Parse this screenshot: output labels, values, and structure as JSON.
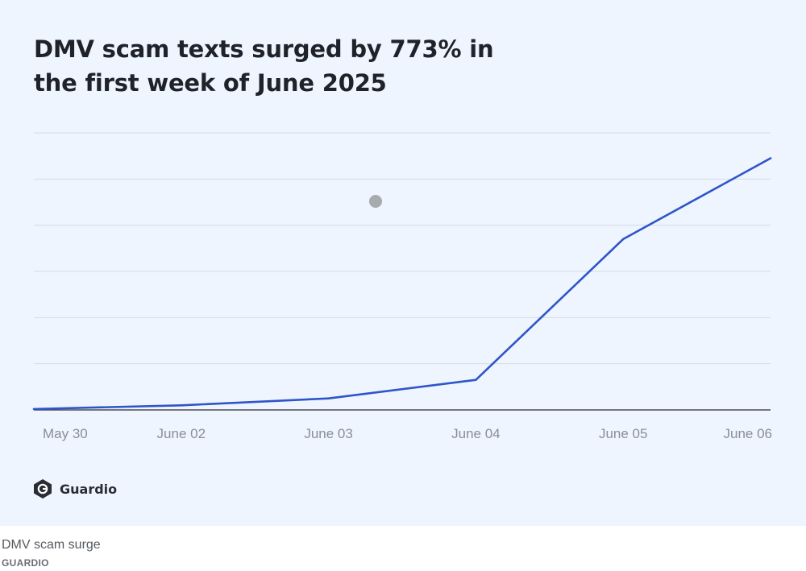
{
  "chart_data": {
    "type": "line",
    "title": "DMV scam texts surged by 773% in the first week of June 2025",
    "categories": [
      "May 30",
      "June 02",
      "June 03",
      "June 04",
      "June 05",
      "June 06"
    ],
    "series": [
      {
        "values": [
          0.2,
          1.0,
          2.5,
          6.5,
          37.0,
          54.5
        ],
        "color": "#2f55c9"
      }
    ],
    "ylim": [
      0,
      60
    ],
    "yticks_labeled": false,
    "grid": true,
    "line_color": "#2f55c9",
    "grid_color": "#d6dbe3",
    "axis_color": "#4a4d55"
  },
  "brand": {
    "name": "Guardio",
    "icon": "guardio-logo-icon"
  },
  "caption": {
    "text": "DMV scam surge",
    "credit": "GUARDIO"
  },
  "colors": {
    "background": "#eef5ff",
    "title": "#1f2229",
    "marker_dot": "#a7aaaf"
  }
}
